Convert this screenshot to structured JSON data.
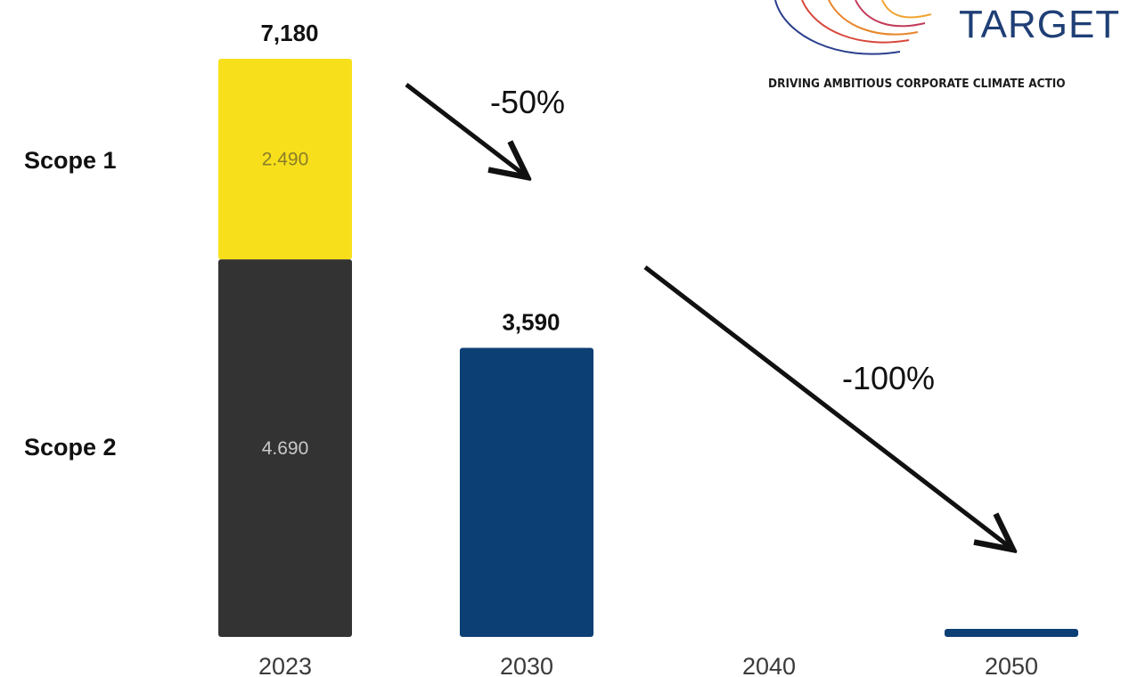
{
  "logo": {
    "text": "TARGETS",
    "tagline": "DRIVING AMBITIOUS CORPORATE CLIMATE ACTIO"
  },
  "chart_data": {
    "type": "bar",
    "categories": [
      "2023",
      "2030",
      "2040",
      "2050"
    ],
    "series": [
      {
        "name": "Scope 2",
        "values": [
          4690,
          0,
          0,
          0
        ],
        "labels": [
          "4.690",
          "",
          "",
          ""
        ],
        "color": "#333333"
      },
      {
        "name": "Scope 1",
        "values": [
          2490,
          0,
          0,
          0
        ],
        "labels": [
          "2.490",
          "",
          "",
          ""
        ],
        "color": "#f7e01b"
      },
      {
        "name": "",
        "values": [
          0,
          3590,
          0,
          100
        ],
        "labels": [
          "",
          "",
          "",
          ""
        ],
        "color": "#0c3f73"
      }
    ],
    "totals": [
      "7,180",
      "3,590",
      "",
      ""
    ],
    "annotations": [
      {
        "text": "-50%",
        "from": "2023",
        "to": "2030"
      },
      {
        "text": "-100%",
        "from": "2030",
        "to": "2050"
      }
    ],
    "stacked": true,
    "ylim": [
      0,
      7180
    ],
    "title": "",
    "xlabel": "",
    "ylabel": "",
    "grid": false,
    "legend": "left"
  }
}
